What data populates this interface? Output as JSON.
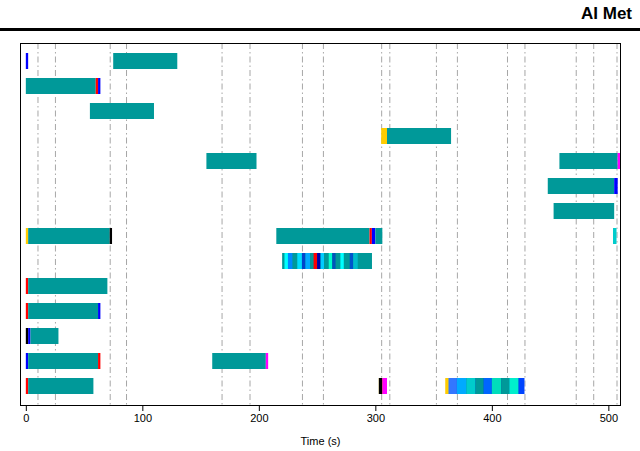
{
  "chart_data": {
    "type": "timeline",
    "title": "AI Met",
    "xlabel": "Time (s)",
    "xlim": [
      -5,
      510
    ],
    "xticks": [
      0,
      100,
      200,
      300,
      400,
      500
    ],
    "tick_labels": "x",
    "grid": false,
    "categories": [
      null,
      null,
      null,
      null,
      null,
      null,
      null,
      null,
      null,
      null,
      null,
      null,
      null,
      null
    ],
    "vlines": {
      "values": [
        10,
        25,
        72,
        86,
        168,
        192,
        237,
        255,
        305,
        312,
        352,
        370,
        413,
        428,
        472,
        487,
        507
      ],
      "color": "#888888",
      "line_style": "dashdot"
    },
    "bars": [
      {
        "category": 0,
        "start": 75,
        "end": 130,
        "color": "#009999"
      },
      {
        "category": 0,
        "start": 0,
        "end": 2,
        "color": "#0000ff"
      },
      {
        "category": 1,
        "start": 0,
        "end": 60,
        "color": "#009999"
      },
      {
        "category": 1,
        "start": 60,
        "end": 62,
        "color": "#ff0000"
      },
      {
        "category": 1,
        "start": 62,
        "end": 64,
        "color": "#0000ff"
      },
      {
        "category": 2,
        "start": 55,
        "end": 110,
        "color": "#009999"
      },
      {
        "category": 3,
        "start": 305,
        "end": 310,
        "color": "#ffcc00"
      },
      {
        "category": 3,
        "start": 310,
        "end": 365,
        "color": "#009999"
      },
      {
        "category": 4,
        "start": 155,
        "end": 198,
        "color": "#009999"
      },
      {
        "category": 4,
        "start": 458,
        "end": 508,
        "color": "#009999"
      },
      {
        "category": 4,
        "start": 508,
        "end": 510,
        "color": "#ff00ff"
      },
      {
        "category": 5,
        "start": 448,
        "end": 505,
        "color": "#009999"
      },
      {
        "category": 5,
        "start": 505,
        "end": 508,
        "color": "#0000ff"
      },
      {
        "category": 6,
        "start": 453,
        "end": 505,
        "color": "#009999"
      },
      {
        "category": 7,
        "start": 0,
        "end": 2,
        "color": "#ffcc00"
      },
      {
        "category": 7,
        "start": 2,
        "end": 72,
        "color": "#009999"
      },
      {
        "category": 7,
        "start": 72,
        "end": 74,
        "color": "#000000"
      },
      {
        "category": 7,
        "start": 215,
        "end": 295,
        "color": "#009999"
      },
      {
        "category": 7,
        "start": 295,
        "end": 297,
        "color": "#ff0000"
      },
      {
        "category": 7,
        "start": 297,
        "end": 300,
        "color": "#0000ff"
      },
      {
        "category": 7,
        "start": 300,
        "end": 306,
        "color": "#009999"
      },
      {
        "category": 7,
        "start": 504,
        "end": 507,
        "color": "#00cccc"
      },
      {
        "category": 8,
        "start": 220,
        "end": 297,
        "color": "#009999"
      },
      {
        "category": 8,
        "start": 222,
        "end": 225,
        "color": "#00ffff"
      },
      {
        "category": 8,
        "start": 225,
        "end": 229,
        "color": "#0088ff"
      },
      {
        "category": 8,
        "start": 229,
        "end": 233,
        "color": "#009999"
      },
      {
        "category": 8,
        "start": 233,
        "end": 237,
        "color": "#00ddff"
      },
      {
        "category": 8,
        "start": 237,
        "end": 240,
        "color": "#0044cc"
      },
      {
        "category": 8,
        "start": 240,
        "end": 244,
        "color": "#00aaff"
      },
      {
        "category": 8,
        "start": 244,
        "end": 247,
        "color": "#009999"
      },
      {
        "category": 8,
        "start": 247,
        "end": 250,
        "color": "#ff0000"
      },
      {
        "category": 8,
        "start": 250,
        "end": 253,
        "color": "#0000aa"
      },
      {
        "category": 8,
        "start": 253,
        "end": 256,
        "color": "#00ccff"
      },
      {
        "category": 8,
        "start": 256,
        "end": 260,
        "color": "#009999"
      },
      {
        "category": 8,
        "start": 260,
        "end": 263,
        "color": "#00ffcc"
      },
      {
        "category": 8,
        "start": 263,
        "end": 266,
        "color": "#0055bb"
      },
      {
        "category": 8,
        "start": 266,
        "end": 270,
        "color": "#009999"
      },
      {
        "category": 8,
        "start": 270,
        "end": 273,
        "color": "#00ffff"
      },
      {
        "category": 8,
        "start": 273,
        "end": 278,
        "color": "#009999"
      },
      {
        "category": 8,
        "start": 278,
        "end": 281,
        "color": "#0055cc"
      },
      {
        "category": 8,
        "start": 281,
        "end": 285,
        "color": "#00bbcc"
      },
      {
        "category": 8,
        "start": 285,
        "end": 297,
        "color": "#009999"
      },
      {
        "category": 9,
        "start": 0,
        "end": 2,
        "color": "#ff0000"
      },
      {
        "category": 9,
        "start": 2,
        "end": 70,
        "color": "#009999"
      },
      {
        "category": 10,
        "start": 0,
        "end": 2,
        "color": "#ff0000"
      },
      {
        "category": 10,
        "start": 2,
        "end": 62,
        "color": "#009999"
      },
      {
        "category": 10,
        "start": 62,
        "end": 64,
        "color": "#0000ff"
      },
      {
        "category": 11,
        "start": 0,
        "end": 2,
        "color": "#000000"
      },
      {
        "category": 11,
        "start": 2,
        "end": 4,
        "color": "#0000ff"
      },
      {
        "category": 11,
        "start": 4,
        "end": 28,
        "color": "#009999"
      },
      {
        "category": 12,
        "start": 0,
        "end": 2,
        "color": "#0000ff"
      },
      {
        "category": 12,
        "start": 2,
        "end": 62,
        "color": "#009999"
      },
      {
        "category": 12,
        "start": 62,
        "end": 64,
        "color": "#ff0000"
      },
      {
        "category": 12,
        "start": 160,
        "end": 206,
        "color": "#009999"
      },
      {
        "category": 12,
        "start": 206,
        "end": 208,
        "color": "#ff00ff"
      },
      {
        "category": 13,
        "start": 0,
        "end": 2,
        "color": "#ff0000"
      },
      {
        "category": 13,
        "start": 2,
        "end": 58,
        "color": "#009999"
      },
      {
        "category": 13,
        "start": 303,
        "end": 308,
        "color": "#ffcc00"
      },
      {
        "category": 13,
        "start": 303,
        "end": 306,
        "color": "#000000"
      },
      {
        "category": 13,
        "start": 306,
        "end": 310,
        "color": "#ff00ff"
      },
      {
        "category": 13,
        "start": 360,
        "end": 363,
        "color": "#ffcc00"
      },
      {
        "category": 13,
        "start": 363,
        "end": 425,
        "color": "#0044bb"
      },
      {
        "category": 13,
        "start": 363,
        "end": 370,
        "color": "#3377ff"
      },
      {
        "category": 13,
        "start": 370,
        "end": 378,
        "color": "#00aaff"
      },
      {
        "category": 13,
        "start": 378,
        "end": 386,
        "color": "#00cccc"
      },
      {
        "category": 13,
        "start": 386,
        "end": 393,
        "color": "#009999"
      },
      {
        "category": 13,
        "start": 393,
        "end": 400,
        "color": "#0066ff"
      },
      {
        "category": 13,
        "start": 400,
        "end": 408,
        "color": "#00ddbb"
      },
      {
        "category": 13,
        "start": 408,
        "end": 415,
        "color": "#009999"
      },
      {
        "category": 13,
        "start": 415,
        "end": 423,
        "color": "#00eecc"
      },
      {
        "category": 13,
        "start": 423,
        "end": 428,
        "color": "#0044ff"
      }
    ]
  }
}
